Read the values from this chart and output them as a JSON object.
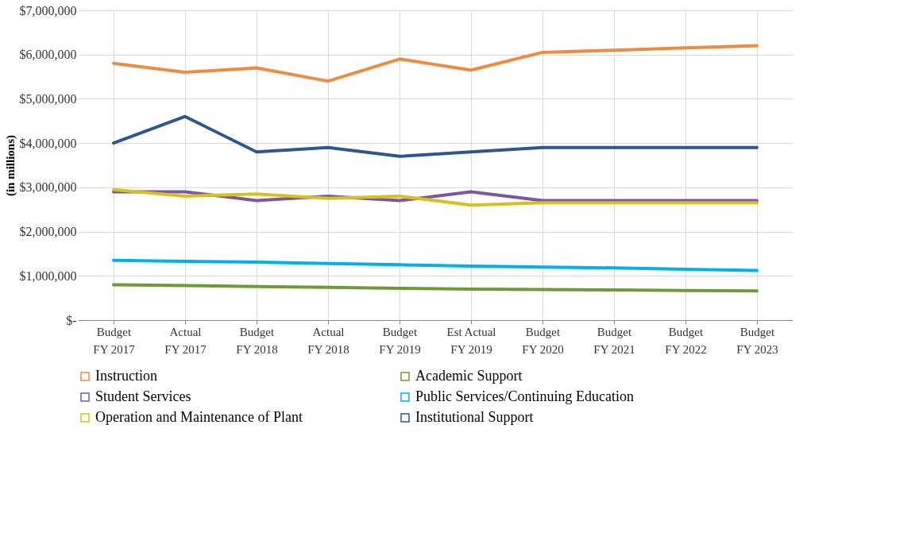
{
  "chart_data": {
    "type": "line",
    "ylabel": "(in millions)",
    "categories": [
      "Budget FY 2017",
      "Actual FY 2017",
      "Budget FY 2018",
      "Actual FY 2018",
      "Budget FY 2019",
      "Est Actual FY 2019",
      "Budget FY 2020",
      "Budget FY 2021",
      "Budget FY 2022",
      "Budget FY 2023"
    ],
    "series": [
      {
        "name": "Instruction",
        "color": "#ed8b3f",
        "values": [
          5800000,
          5600000,
          5700000,
          5400000,
          5900000,
          5650000,
          6050000,
          6100000,
          6150000,
          6200000
        ]
      },
      {
        "name": "Academic Support",
        "color": "#6f9a3a",
        "values": [
          800000,
          780000,
          760000,
          740000,
          720000,
          700000,
          690000,
          680000,
          670000,
          660000
        ]
      },
      {
        "name": "Student Services",
        "color": "#7e56a1",
        "values": [
          2900000,
          2900000,
          2700000,
          2800000,
          2700000,
          2900000,
          2700000,
          2700000,
          2700000,
          2700000
        ]
      },
      {
        "name": "Public Services/Continuing Education",
        "color": "#00b0f0",
        "values": [
          1350000,
          1330000,
          1310000,
          1280000,
          1250000,
          1220000,
          1200000,
          1180000,
          1150000,
          1120000
        ]
      },
      {
        "name": "Operation and Maintenance of Plant",
        "color": "#d6c21c",
        "values": [
          2950000,
          2800000,
          2850000,
          2750000,
          2800000,
          2600000,
          2650000,
          2650000,
          2650000,
          2650000
        ]
      },
      {
        "name": "Institutional Support",
        "color": "#2f5690",
        "values": [
          4000000,
          4600000,
          3800000,
          3900000,
          3700000,
          3800000,
          3900000,
          3900000,
          3900000,
          3900000
        ]
      }
    ],
    "ylim": [
      0,
      7000000
    ],
    "yticks": [
      {
        "value": 0,
        "label": "$-"
      },
      {
        "value": 1000000,
        "label": "$1,000,000"
      },
      {
        "value": 2000000,
        "label": "$2,000,000"
      },
      {
        "value": 3000000,
        "label": "$3,000,000"
      },
      {
        "value": 4000000,
        "label": "$4,000,000"
      },
      {
        "value": 5000000,
        "label": "$5,000,000"
      },
      {
        "value": 6000000,
        "label": "$6,000,000"
      },
      {
        "value": 7000000,
        "label": "$7,000,000"
      }
    ],
    "grid": true,
    "legend": "bottom",
    "line_style": "solid"
  }
}
